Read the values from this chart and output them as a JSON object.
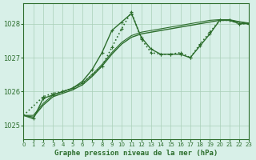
{
  "title": "Graphe pression niveau de la mer (hPa)",
  "background_color": "#d8f0e8",
  "grid_color": "#aacfb8",
  "line_color": "#2d6e2d",
  "xlim": [
    0,
    23
  ],
  "ylim": [
    1024.6,
    1028.6
  ],
  "yticks": [
    1025,
    1026,
    1027,
    1028
  ],
  "xticks": [
    0,
    1,
    2,
    3,
    4,
    5,
    6,
    7,
    8,
    9,
    10,
    11,
    12,
    13,
    14,
    15,
    16,
    17,
    18,
    19,
    20,
    21,
    22,
    23
  ],
  "series": [
    {
      "x": [
        0,
        1,
        2,
        3,
        4,
        5,
        6,
        7,
        8,
        9,
        10,
        11,
        12,
        13,
        14,
        15,
        16,
        17,
        18,
        19,
        20,
        21,
        22,
        23
      ],
      "y": [
        1025.3,
        1025.2,
        1025.8,
        1025.9,
        1026.0,
        1026.1,
        1026.3,
        1026.65,
        1027.15,
        1027.8,
        1028.05,
        1028.3,
        1027.6,
        1027.25,
        1027.1,
        1027.1,
        1027.1,
        1027.0,
        1027.35,
        1027.7,
        1028.1,
        1028.1,
        1028.0,
        1028.0
      ],
      "marker": "+",
      "linestyle": "-",
      "linewidth": 1.0
    },
    {
      "x": [
        0,
        1,
        2,
        3,
        4,
        5,
        6,
        7,
        8,
        9,
        10,
        11,
        12,
        13,
        14,
        15,
        16,
        17,
        18,
        19,
        20,
        21,
        22,
        23
      ],
      "y": [
        1025.3,
        1025.25,
        1025.6,
        1025.85,
        1025.95,
        1026.05,
        1026.2,
        1026.45,
        1026.75,
        1027.1,
        1027.4,
        1027.6,
        1027.7,
        1027.75,
        1027.8,
        1027.85,
        1027.9,
        1027.95,
        1028.0,
        1028.05,
        1028.1,
        1028.1,
        1028.05,
        1028.0
      ],
      "marker": null,
      "linestyle": "-",
      "linewidth": 1.0
    },
    {
      "x": [
        0,
        1,
        2,
        3,
        4,
        5,
        6,
        7,
        8,
        9,
        10,
        11,
        12,
        13,
        14,
        15,
        16,
        17,
        18,
        19,
        20,
        21,
        22,
        23
      ],
      "y": [
        1025.3,
        1025.3,
        1025.65,
        1025.9,
        1026.0,
        1026.1,
        1026.25,
        1026.5,
        1026.8,
        1027.15,
        1027.45,
        1027.65,
        1027.75,
        1027.8,
        1027.85,
        1027.9,
        1027.95,
        1028.0,
        1028.05,
        1028.1,
        1028.12,
        1028.12,
        1028.06,
        1028.02
      ],
      "marker": null,
      "linestyle": "-",
      "linewidth": 0.8
    },
    {
      "x": [
        0,
        2,
        3,
        4,
        5,
        6,
        7,
        8,
        9,
        10,
        11,
        12,
        13,
        14,
        15,
        16,
        17,
        18,
        19,
        20,
        21,
        22,
        23
      ],
      "y": [
        1025.3,
        1025.85,
        1025.95,
        1026.0,
        1026.1,
        1026.25,
        1026.5,
        1026.75,
        1027.3,
        1027.85,
        1028.35,
        1027.55,
        1027.15,
        1027.1,
        1027.1,
        1027.15,
        1027.0,
        1027.4,
        1027.75,
        1028.1,
        1028.1,
        1028.0,
        1028.0
      ],
      "marker": "+",
      "linestyle": ":",
      "linewidth": 1.2
    }
  ]
}
